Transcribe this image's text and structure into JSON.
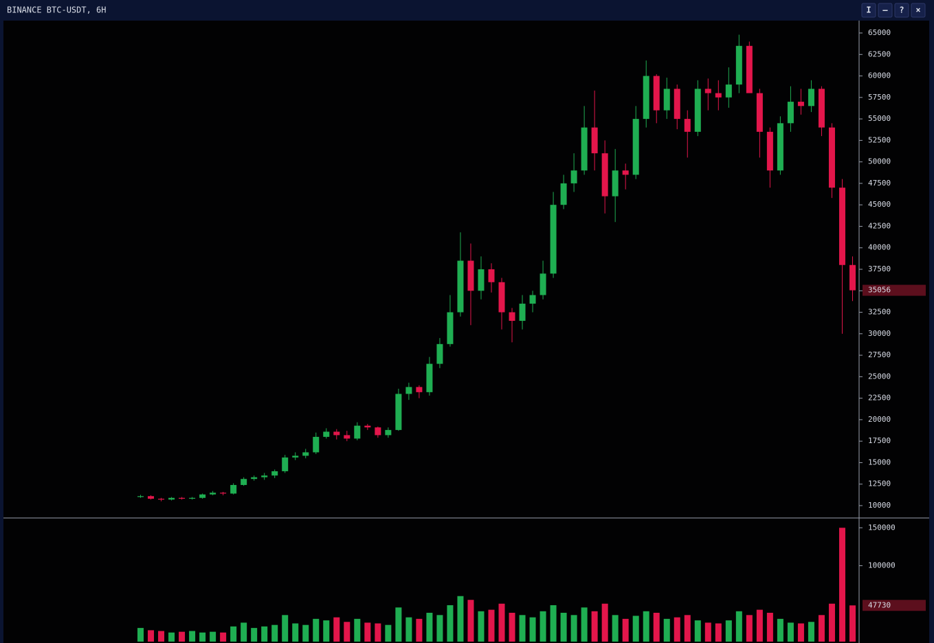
{
  "window": {
    "title": "BINANCE BTC-USDT, 6H",
    "buttons": [
      "I",
      "—",
      "?",
      "×"
    ]
  },
  "chart_data": [
    {
      "type": "candlestick",
      "up_color": "#1fae52",
      "down_color": "#e3164b",
      "marker_color": "#5c0f1d",
      "open": [
        11000,
        11100,
        10800,
        10700,
        10900,
        10800,
        10900,
        11300,
        11500,
        11400,
        12400,
        13100,
        13300,
        13500,
        14000,
        15600,
        15800,
        16200,
        18000,
        18600,
        18200,
        17800,
        19300,
        19100,
        18200,
        18800,
        23000,
        23800,
        23200,
        26500,
        28800,
        32500,
        38500,
        35000,
        37500,
        36000,
        32500,
        31500,
        33500,
        34500,
        37000,
        45000,
        47500,
        49000,
        54000,
        51000,
        46000,
        49000,
        48500,
        55000,
        60000,
        56000,
        58500,
        55000,
        53500,
        58500,
        58000,
        57500,
        59000,
        63500,
        58000,
        53500,
        49000,
        54500,
        57000,
        56500,
        58500,
        54000,
        47000,
        38000
      ],
      "high": [
        11250,
        11200,
        10900,
        11000,
        11000,
        11000,
        11400,
        11700,
        11600,
        12600,
        13300,
        13500,
        13800,
        14200,
        15900,
        16200,
        16600,
        18500,
        19000,
        18900,
        18700,
        19700,
        19500,
        19200,
        19100,
        23600,
        24300,
        24000,
        27300,
        29500,
        34500,
        41800,
        40500,
        39000,
        38200,
        36500,
        33000,
        34500,
        35000,
        38500,
        46500,
        48500,
        51000,
        56500,
        58300,
        52500,
        51500,
        49800,
        56500,
        61800,
        60200,
        59800,
        59000,
        56000,
        59500,
        59700,
        59500,
        61000,
        64800,
        64000,
        58500,
        54000,
        55300,
        58800,
        58500,
        59500,
        58800,
        54500,
        48000,
        39000
      ],
      "low": [
        10900,
        10700,
        10500,
        10600,
        10700,
        10700,
        10800,
        11200,
        11200,
        11300,
        12300,
        12900,
        13000,
        13200,
        13800,
        15300,
        15500,
        16000,
        17800,
        17700,
        17500,
        17600,
        18800,
        17900,
        17900,
        18700,
        22300,
        22500,
        22800,
        26000,
        28500,
        32000,
        31000,
        34000,
        34800,
        30500,
        29000,
        30500,
        32500,
        34000,
        36500,
        44500,
        46500,
        48500,
        49000,
        44000,
        43000,
        46800,
        48000,
        54000,
        54500,
        55000,
        53800,
        50500,
        53000,
        56000,
        56000,
        56300,
        58000,
        58500,
        50500,
        47000,
        48500,
        53500,
        55500,
        55800,
        53000,
        45800,
        30000,
        33800
      ],
      "close": [
        11100,
        10800,
        10700,
        10900,
        10800,
        10900,
        11300,
        11500,
        11400,
        12400,
        13100,
        13300,
        13500,
        14000,
        15600,
        15800,
        16200,
        18000,
        18600,
        18200,
        17800,
        19300,
        19100,
        18200,
        18800,
        23000,
        23800,
        23200,
        26500,
        28800,
        32500,
        38500,
        35000,
        37500,
        36000,
        32500,
        31500,
        33500,
        34500,
        37000,
        45000,
        47500,
        49000,
        54000,
        51000,
        46000,
        49000,
        48500,
        55000,
        60000,
        56000,
        58500,
        55000,
        53500,
        58500,
        58000,
        57500,
        59000,
        63500,
        58000,
        53500,
        49000,
        54500,
        57000,
        56500,
        58500,
        54000,
        47000,
        38000,
        35056
      ],
      "ylim": [
        8640,
        66440
      ],
      "yticks": [
        10000,
        12500,
        15000,
        17500,
        20000,
        22500,
        25000,
        27500,
        30000,
        32500,
        35000,
        37500,
        40000,
        42500,
        45000,
        47500,
        50000,
        52500,
        55000,
        57500,
        60000,
        62500,
        65000
      ]
    },
    {
      "type": "bar",
      "up_color": "#1fae52",
      "down_color": "#e3164b",
      "marker_color": "#5c0f1d",
      "values": [
        18000,
        15000,
        14000,
        12000,
        13000,
        14000,
        12000,
        13000,
        12000,
        20000,
        25000,
        18000,
        20000,
        22000,
        35000,
        24000,
        22000,
        30000,
        28000,
        32000,
        26000,
        30000,
        25000,
        24000,
        22000,
        45000,
        32000,
        30000,
        38000,
        35000,
        48000,
        60000,
        55000,
        40000,
        42000,
        50000,
        38000,
        35000,
        32000,
        40000,
        48000,
        38000,
        35000,
        45000,
        40000,
        50000,
        35000,
        30000,
        34000,
        40000,
        38000,
        30000,
        32000,
        35000,
        28000,
        25000,
        24000,
        28000,
        40000,
        35000,
        42000,
        38000,
        30000,
        25000,
        24000,
        26000,
        35000,
        50000,
        150000,
        47730
      ],
      "ylim": [
        0,
        162000
      ],
      "yticks": [
        100000,
        150000
      ]
    }
  ]
}
